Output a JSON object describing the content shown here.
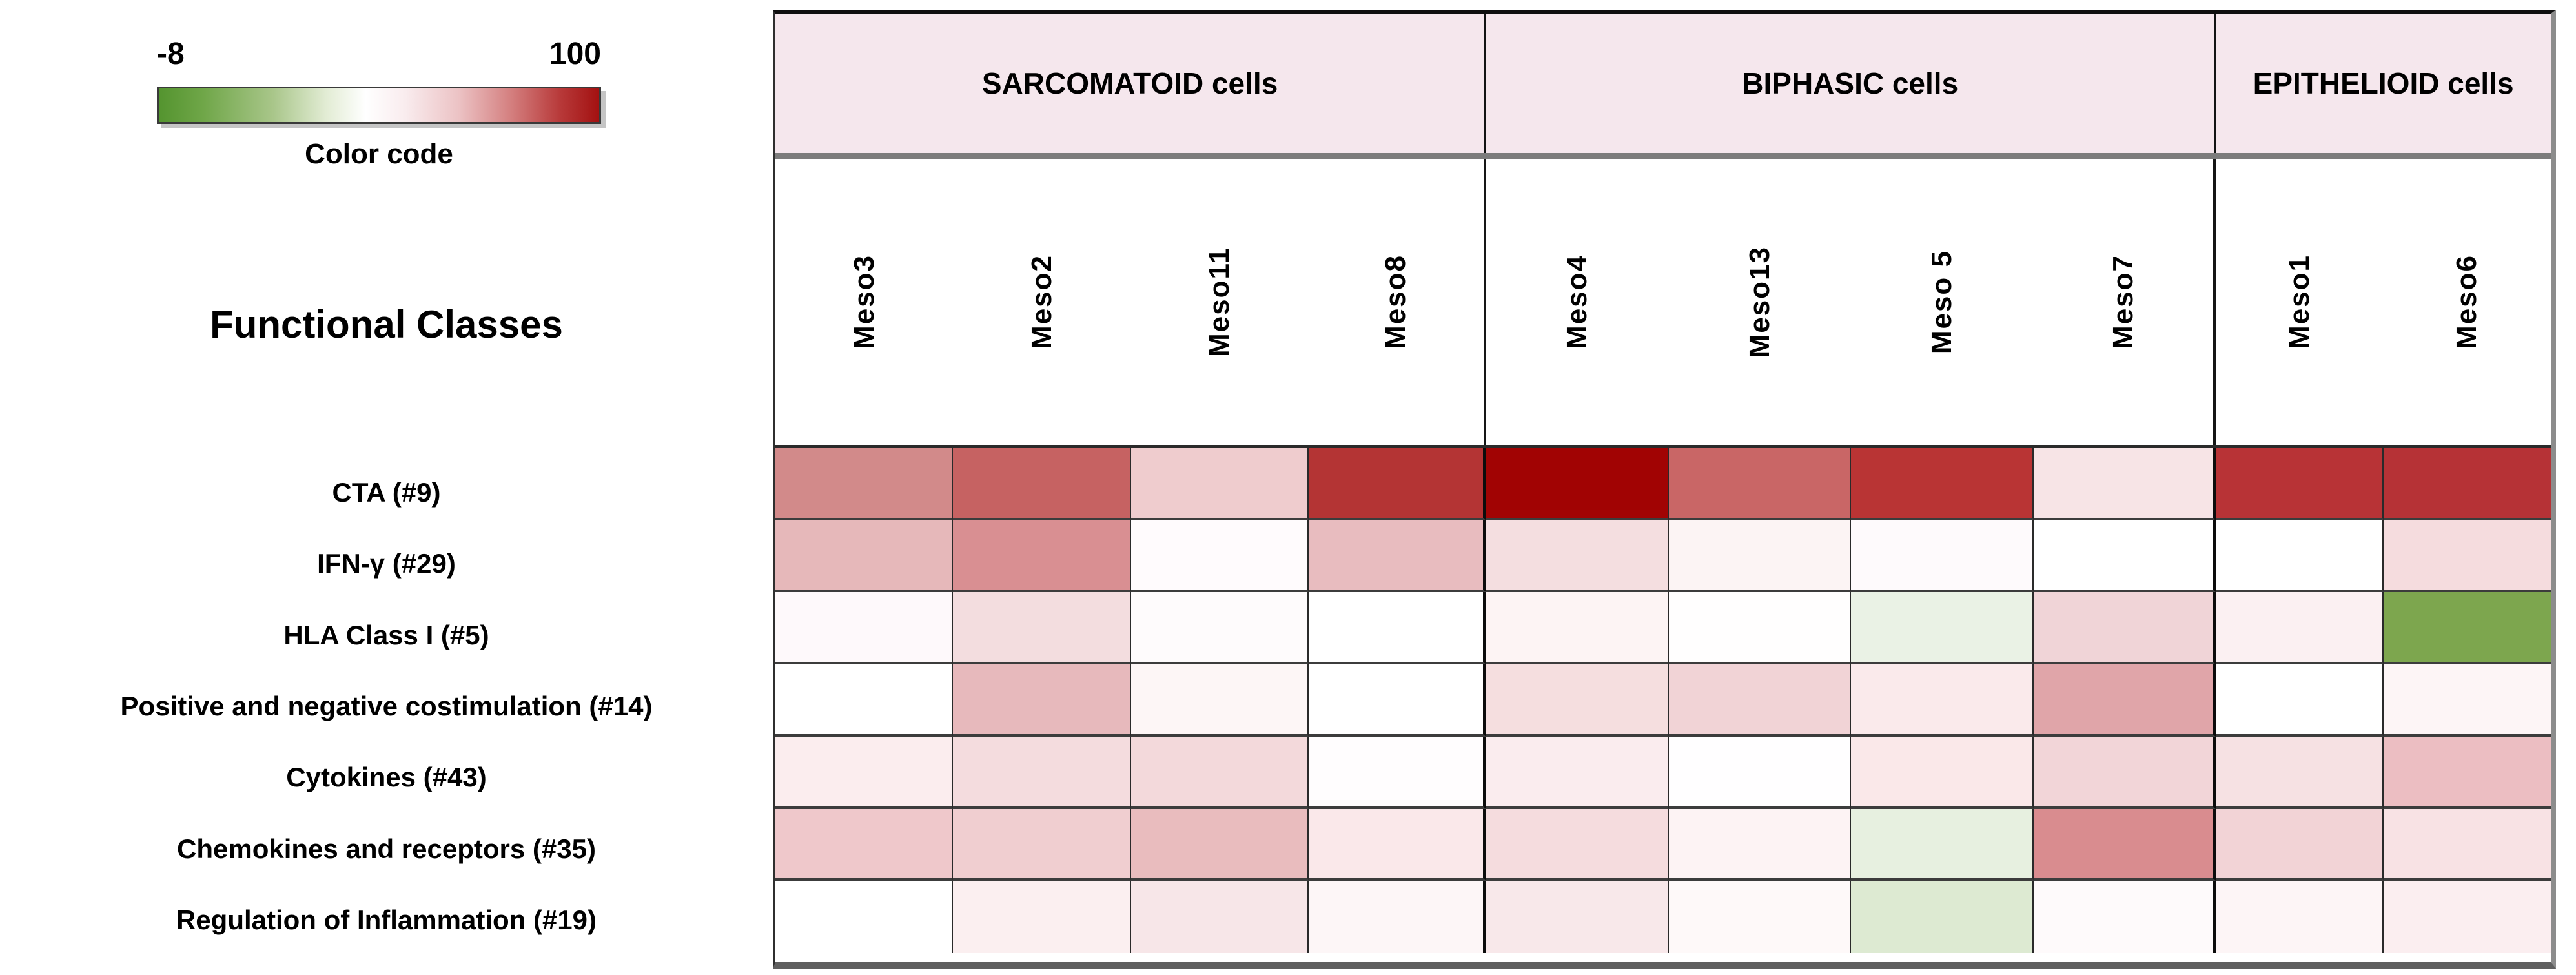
{
  "legend": {
    "min_label": "-8",
    "max_label": "100",
    "caption": "Color code"
  },
  "left_panel": {
    "title": "Functional Classes"
  },
  "chart_data": {
    "type": "heatmap",
    "title": "Functional Classes",
    "colorbar": {
      "label": "Color code",
      "min": -8,
      "max": 100,
      "low_color": "#54942f",
      "mid_color": "#ffffff",
      "high_color": "#a31111",
      "orientation": "horizontal",
      "position": "top-left"
    },
    "column_groups": [
      {
        "label": "SARCOMATOID cells",
        "span": 4,
        "background": "#f5e7ed"
      },
      {
        "label": "BIPHASIC cells",
        "span": 4,
        "background": "#f5e7ed"
      },
      {
        "label": "EPITHELIOID cells",
        "span": 2,
        "background": "#f5e7ed"
      }
    ],
    "columns": [
      "Meso3",
      "Meso2",
      "Meso11",
      "Meso8",
      "Meso4",
      "Meso13",
      "Meso 5",
      "Meso7",
      "Meso1",
      "Meso6"
    ],
    "rows": [
      "CTA (#9)",
      "IFN-γ (#29)",
      "HLA Class I (#5)",
      "Positive and negative costimulation (#14)",
      "Cytokines (#43)",
      "Chemokines and receptors (#35)",
      "Regulation of Inflammation (#19)"
    ],
    "cell_colors": [
      [
        "#d28a8a",
        "#c66262",
        "#efccce",
        "#b43434",
        "#a10303",
        "#c96666",
        "#b93434",
        "#f7e4e6",
        "#b83336",
        "#b63236"
      ],
      [
        "#e6b8ba",
        "#d98f92",
        "#fffbfd",
        "#e8bcbf",
        "#f4dee0",
        "#fcf4f4",
        "#fefafc",
        "#ffffff",
        "#ffffff",
        "#f5dcde"
      ],
      [
        "#fef9fb",
        "#f3dddf",
        "#fefbfc",
        "#ffffff",
        "#fdf4f4",
        "#fffefe",
        "#eaf2e5",
        "#f0d4d7",
        "#fbf0f2",
        "#7da64e"
      ],
      [
        "#ffffff",
        "#e7b9bc",
        "#fdf6f6",
        "#ffffff",
        "#f5dedf",
        "#f1d3d6",
        "#faeaeb",
        "#e0a5a9",
        "#ffffff",
        "#fdf5f6"
      ],
      [
        "#fbedee",
        "#f4dcde",
        "#f3d9db",
        "#fffdfe",
        "#faecee",
        "#fffeff",
        "#fae8e9",
        "#f2d5d8",
        "#f6e1e3",
        "#ecbec2"
      ],
      [
        "#efc8cb",
        "#f0ced0",
        "#e9bcbe",
        "#fae8ea",
        "#f5dcde",
        "#fdf3f4",
        "#e7f0e0",
        "#d98c8f",
        "#f2d3d6",
        "#f8e2e4"
      ],
      [
        "#ffffff",
        "#fbeff0",
        "#f7e6e8",
        "#fdf6f7",
        "#f8e8ea",
        "#fef9f9",
        "#ddead2",
        "#fefafb",
        "#fdf5f6",
        "#fbeef0"
      ]
    ],
    "estimated_values": [
      [
        71,
        79,
        57,
        89,
        100,
        78,
        89,
        52,
        89,
        89
      ],
      [
        61,
        70,
        47,
        61,
        53,
        48,
        47,
        46,
        46,
        53
      ],
      [
        47,
        53,
        47,
        46,
        48,
        46,
        42,
        55,
        49,
        3
      ],
      [
        46,
        61,
        48,
        46,
        53,
        55,
        50,
        65,
        46,
        48
      ],
      [
        50,
        53,
        54,
        46,
        50,
        46,
        51,
        55,
        52,
        60
      ],
      [
        57,
        56,
        61,
        51,
        53,
        48,
        43,
        71,
        55,
        52
      ],
      [
        46,
        49,
        51,
        48,
        51,
        47,
        38,
        47,
        48,
        49
      ]
    ]
  }
}
